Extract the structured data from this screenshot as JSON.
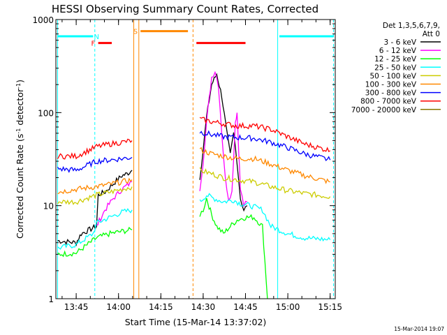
{
  "chart_data": {
    "type": "line",
    "title": "HESSI Observing Summary Count Rates, Corrected",
    "xlabel": "Start Time (15-Mar-14 13:37:02)",
    "ylabel_main": "Corrected Count Rate (s",
    "ylabel_sup1": "-1",
    "ylabel_mid": " detector",
    "ylabel_sup2": "-1",
    "ylabel_end": ")",
    "yscale": "log",
    "ylim": [
      1,
      1000
    ],
    "xlim_minutes": [
      13.63,
      15.28
    ],
    "grid": false,
    "x_ticks": [
      "13:45",
      "14:00",
      "14:15",
      "14:30",
      "14:45",
      "15:00",
      "15:15"
    ],
    "x_tick_values": [
      13.75,
      14.0,
      14.25,
      14.5,
      14.75,
      15.0,
      15.25
    ],
    "y_ticks": [
      "1",
      "10",
      "100",
      "1000"
    ],
    "y_tick_values": [
      1,
      10,
      100,
      1000
    ],
    "legend": {
      "placement": "right",
      "header1": "Det 1,3,5,6,7,9,",
      "header2": "Att 0"
    },
    "series": [
      {
        "name": "3 - 6 keV",
        "color": "#000000",
        "segments": [
          [
            [
              13.64,
              4.2
            ],
            [
              13.75,
              4.0
            ],
            [
              13.78,
              5
            ],
            [
              13.87,
              6
            ],
            [
              13.88,
              13
            ],
            [
              13.92,
              14
            ],
            [
              13.98,
              18
            ],
            [
              14.02,
              21
            ],
            [
              14.05,
              22
            ],
            [
              14.08,
              24
            ]
          ],
          [
            [
              14.48,
              20
            ],
            [
              14.5,
              40
            ],
            [
              14.52,
              90
            ],
            [
              14.55,
              200
            ],
            [
              14.58,
              260
            ],
            [
              14.61,
              150
            ],
            [
              14.64,
              60
            ],
            [
              14.66,
              35
            ],
            [
              14.68,
              60
            ],
            [
              14.7,
              30
            ],
            [
              14.72,
              12
            ],
            [
              14.74,
              9
            ],
            [
              14.76,
              10
            ]
          ]
        ]
      },
      {
        "name": "6 - 12 keV",
        "color": "#ff00ff",
        "segments": [
          [
            [
              13.87,
              6
            ],
            [
              13.92,
              9
            ],
            [
              13.97,
              12
            ],
            [
              14.02,
              15
            ],
            [
              14.06,
              17
            ],
            [
              14.08,
              18
            ]
          ],
          [
            [
              14.48,
              15
            ],
            [
              14.5,
              30
            ],
            [
              14.52,
              80
            ],
            [
              14.55,
              240
            ],
            [
              14.57,
              280
            ],
            [
              14.59,
              200
            ],
            [
              14.61,
              60
            ],
            [
              14.63,
              20
            ],
            [
              14.65,
              12
            ],
            [
              14.67,
              14
            ],
            [
              14.69,
              80
            ],
            [
              14.7,
              100
            ],
            [
              14.71,
              40
            ],
            [
              14.72,
              15
            ],
            [
              14.74,
              10
            ],
            [
              14.76,
              11
            ]
          ]
        ]
      },
      {
        "name": "12 - 25 keV",
        "color": "#00ff00",
        "segments": [
          [
            [
              13.64,
              3.0
            ],
            [
              13.75,
              3.1
            ],
            [
              13.87,
              4.5
            ],
            [
              13.95,
              5
            ],
            [
              14.02,
              5.3
            ],
            [
              14.08,
              5.5
            ]
          ],
          [
            [
              14.48,
              8
            ],
            [
              14.5,
              9
            ],
            [
              14.52,
              12
            ],
            [
              14.55,
              8
            ],
            [
              14.58,
              6
            ],
            [
              14.62,
              5
            ],
            [
              14.66,
              6
            ],
            [
              14.7,
              7
            ],
            [
              14.75,
              7.5
            ],
            [
              14.8,
              7.5
            ],
            [
              14.85,
              6
            ],
            [
              14.88,
              1
            ],
            [
              14.9,
              1
            ]
          ]
        ]
      },
      {
        "name": "25 - 50 keV",
        "color": "#00ffff",
        "segments": [
          [
            [
              13.64,
              3.5
            ],
            [
              13.75,
              3.8
            ],
            [
              13.85,
              5
            ],
            [
              13.87,
              6.5
            ],
            [
              13.95,
              7.5
            ],
            [
              14.02,
              8.5
            ],
            [
              14.08,
              9
            ]
          ],
          [
            [
              14.48,
              11
            ],
            [
              14.52,
              13
            ],
            [
              14.56,
              12
            ],
            [
              14.62,
              11
            ],
            [
              14.68,
              11.5
            ],
            [
              14.72,
              10.5
            ],
            [
              14.78,
              10
            ],
            [
              14.85,
              9
            ],
            [
              14.9,
              6
            ],
            [
              15.0,
              5
            ],
            [
              15.1,
              4.5
            ],
            [
              15.25,
              4.3
            ]
          ]
        ]
      },
      {
        "name": "50 - 100 keV",
        "color": "#cccc00",
        "segments": [
          [
            [
              13.64,
              11
            ],
            [
              13.75,
              11
            ],
            [
              13.87,
              13
            ],
            [
              13.95,
              14
            ],
            [
              14.02,
              15
            ],
            [
              14.08,
              16
            ]
          ],
          [
            [
              14.48,
              24
            ],
            [
              14.55,
              22
            ],
            [
              14.62,
              20
            ],
            [
              14.7,
              19
            ],
            [
              14.8,
              18
            ],
            [
              14.9,
              16
            ],
            [
              15.0,
              14.5
            ],
            [
              15.1,
              13.5
            ],
            [
              15.25,
              12.5
            ]
          ]
        ]
      },
      {
        "name": "100 - 300 keV",
        "color": "#ff8800",
        "segments": [
          [
            [
              13.64,
              14
            ],
            [
              13.75,
              15
            ],
            [
              13.87,
              16
            ],
            [
              13.95,
              17
            ],
            [
              14.02,
              18
            ],
            [
              14.08,
              19
            ]
          ],
          [
            [
              14.48,
              40
            ],
            [
              14.55,
              36
            ],
            [
              14.62,
              34
            ],
            [
              14.7,
              32
            ],
            [
              14.8,
              32
            ],
            [
              14.9,
              28
            ],
            [
              15.0,
              24
            ],
            [
              15.1,
              21
            ],
            [
              15.25,
              18
            ]
          ]
        ]
      },
      {
        "name": "300 - 800 keV",
        "color": "#0000ff",
        "segments": [
          [
            [
              13.64,
              25
            ],
            [
              13.75,
              24
            ],
            [
              13.87,
              30
            ],
            [
              13.95,
              31
            ],
            [
              14.02,
              32
            ],
            [
              14.08,
              33
            ]
          ],
          [
            [
              14.48,
              62
            ],
            [
              14.55,
              58
            ],
            [
              14.62,
              55
            ],
            [
              14.7,
              54
            ],
            [
              14.8,
              53
            ],
            [
              14.9,
              48
            ],
            [
              15.0,
              42
            ],
            [
              15.1,
              36
            ],
            [
              15.25,
              31
            ]
          ]
        ]
      },
      {
        "name": "800 - 7000 keV",
        "color": "#ff0000",
        "segments": [
          [
            [
              13.64,
              34
            ],
            [
              13.75,
              34
            ],
            [
              13.87,
              43
            ],
            [
              13.95,
              46
            ],
            [
              14.02,
              48
            ],
            [
              14.08,
              50
            ]
          ],
          [
            [
              14.48,
              85
            ],
            [
              14.55,
              80
            ],
            [
              14.62,
              76
            ],
            [
              14.7,
              72
            ],
            [
              14.8,
              72
            ],
            [
              14.9,
              66
            ],
            [
              15.0,
              55
            ],
            [
              15.1,
              46
            ],
            [
              15.25,
              39
            ]
          ]
        ]
      },
      {
        "name": "7000 - 20000 keV",
        "color": "#887700",
        "segments": []
      }
    ],
    "flags": [
      {
        "label": "N",
        "color": "#00ffff",
        "x_start": 13.64,
        "x_end": 13.85,
        "y": 660,
        "label_x": 13.87
      },
      {
        "label": "N",
        "color": "#00ffff",
        "x_start": 14.95,
        "x_end": 15.27,
        "y": 660,
        "label_x": null
      },
      {
        "label": "F",
        "color": "#ff0000",
        "x_start": 13.88,
        "x_end": 13.96,
        "y": 560,
        "label_x": 13.85
      },
      {
        "label": "F",
        "color": "#ff0000",
        "x_start": 14.46,
        "x_end": 14.75,
        "y": 560,
        "label_x": null
      },
      {
        "label": "S",
        "color": "#ff8800",
        "x_start": 14.13,
        "x_end": 14.41,
        "y": 750,
        "label_x": 14.1
      }
    ],
    "markers": [
      {
        "x": 13.64,
        "color": "#00ffff",
        "style": "solid"
      },
      {
        "x": 13.86,
        "color": "#00ffff",
        "style": "dashed"
      },
      {
        "x": 14.09,
        "color": "#ff8800",
        "style": "solid"
      },
      {
        "x": 14.12,
        "color": "#ff8800",
        "style": "solid"
      },
      {
        "x": 14.44,
        "color": "#ff8800",
        "style": "dashed"
      },
      {
        "x": 14.94,
        "color": "#00ffff",
        "style": "solid"
      },
      {
        "x": 15.27,
        "color": "#00ffff",
        "style": "dashed"
      }
    ]
  },
  "footer": {
    "timestamp": "15-Mar-2014 19:07"
  }
}
